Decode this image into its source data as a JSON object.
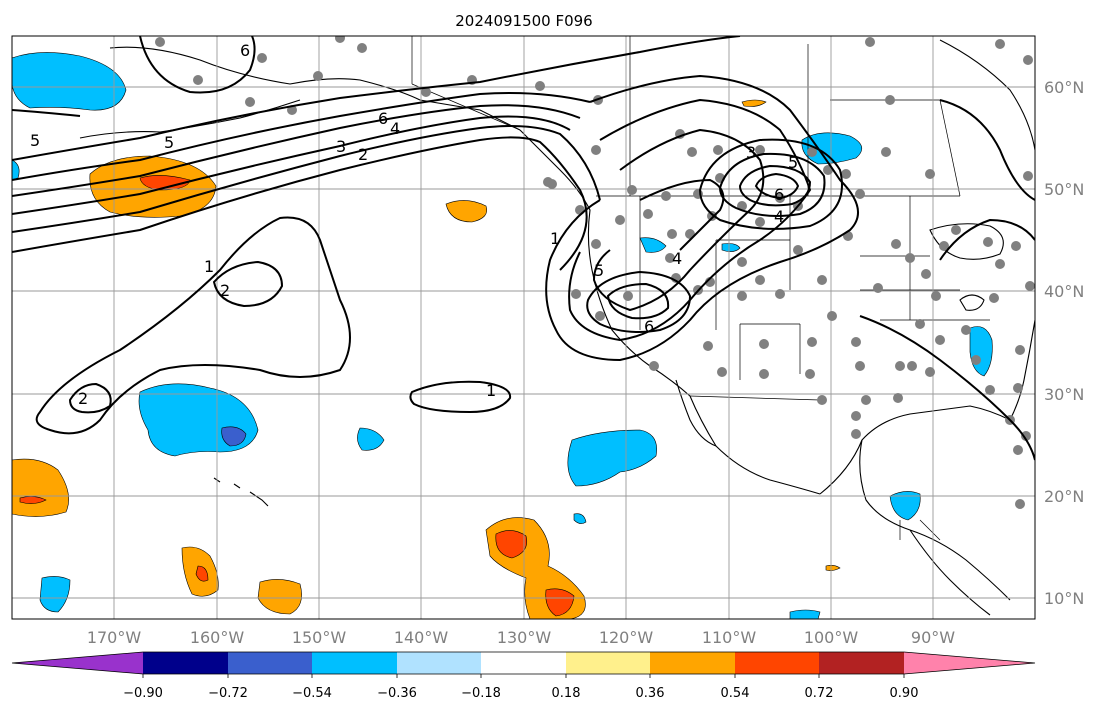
{
  "title": "2024091500 F096",
  "map": {
    "lat_labels": [
      "60°N",
      "50°N",
      "40°N",
      "30°N",
      "20°N",
      "10°N"
    ],
    "lon_labels": [
      "170°W",
      "160°W",
      "150°W",
      "140°W",
      "130°W",
      "120°W",
      "110°W",
      "100°W",
      "90°W"
    ],
    "contour_levels": [
      "1",
      "2",
      "3",
      "4",
      "5",
      "6"
    ]
  },
  "colorbar": {
    "tick_labels": [
      "−0.90",
      "−0.72",
      "−0.54",
      "−0.36",
      "−0.18",
      "0.18",
      "0.36",
      "0.54",
      "0.72",
      "0.90"
    ],
    "colors": [
      "#9932cc",
      "#00008b",
      "#3a5fcd",
      "#00bfff",
      "#b0e2ff",
      "#ffffff",
      "#fff08c",
      "#ffa500",
      "#ff4500",
      "#b22222",
      "#ff82ab"
    ]
  }
}
